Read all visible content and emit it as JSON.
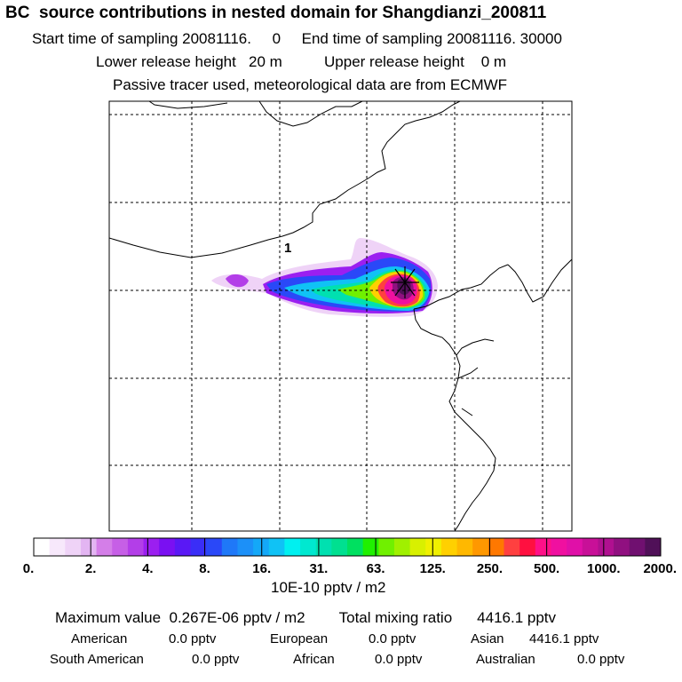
{
  "header": {
    "title": "BC  source contributions in nested domain for Shangdianzi_200811",
    "line1": "Start time of sampling 20081116.     0     End time of sampling 20081116. 30000",
    "line2": "Lower release height   20 m          Upper release height    0 m",
    "line3": "Passive tracer used, meteorological data are from ECMWF"
  },
  "chart_data": {
    "type": "heatmap",
    "title": "BC  source contributions in nested domain for Shangdianzi_200811",
    "colorbar": {
      "tick_labels": [
        "0.",
        "2.",
        "4.",
        "8.",
        "16.",
        "31.",
        "63.",
        "125.",
        "250.",
        "500.",
        "1000.",
        "2000."
      ],
      "colors": [
        "#ffffff",
        "#f7e8fb",
        "#efd3f7",
        "#e3b5f2",
        "#d47ee8",
        "#c65fe6",
        "#b33ee8",
        "#9b1ff0",
        "#7a10f2",
        "#5a18f5",
        "#3a2ef7",
        "#2a48f8",
        "#1f78f8",
        "#1c90f8",
        "#14a8f8",
        "#10c2f5",
        "#00f0f0",
        "#00e8d0",
        "#00e0b0",
        "#00e090",
        "#00e060",
        "#20f000",
        "#70f000",
        "#a0f000",
        "#d8f000",
        "#f0f000",
        "#ffd000",
        "#ffb800",
        "#ff9800",
        "#ff7800",
        "#ff4040",
        "#ff1040",
        "#ff1088",
        "#f010a0",
        "#e010a8",
        "#c81098",
        "#b01090",
        "#901080",
        "#701070",
        "#501058"
      ],
      "units_label": "10E-10 pptv / m2"
    },
    "receptor_label": "1",
    "maximum_value": "0.267E-06",
    "total_mixing_ratio": "4416.1",
    "legend": "bottom"
  },
  "summary": {
    "max_label": "Maximum value",
    "max_value": "0.267E-06",
    "max_unit": "pptv / m2",
    "total_label": "Total mixing ratio",
    "total_value": "4416.1 pptv",
    "sources": [
      {
        "name": "American",
        "value": "0.0 pptv"
      },
      {
        "name": "European",
        "value": "0.0 pptv"
      },
      {
        "name": "Asian",
        "value": "4416.1 pptv"
      },
      {
        "name": "South American",
        "value": "0.0 pptv"
      },
      {
        "name": "African",
        "value": "0.0 pptv"
      },
      {
        "name": "Australian",
        "value": "0.0 pptv"
      }
    ]
  }
}
